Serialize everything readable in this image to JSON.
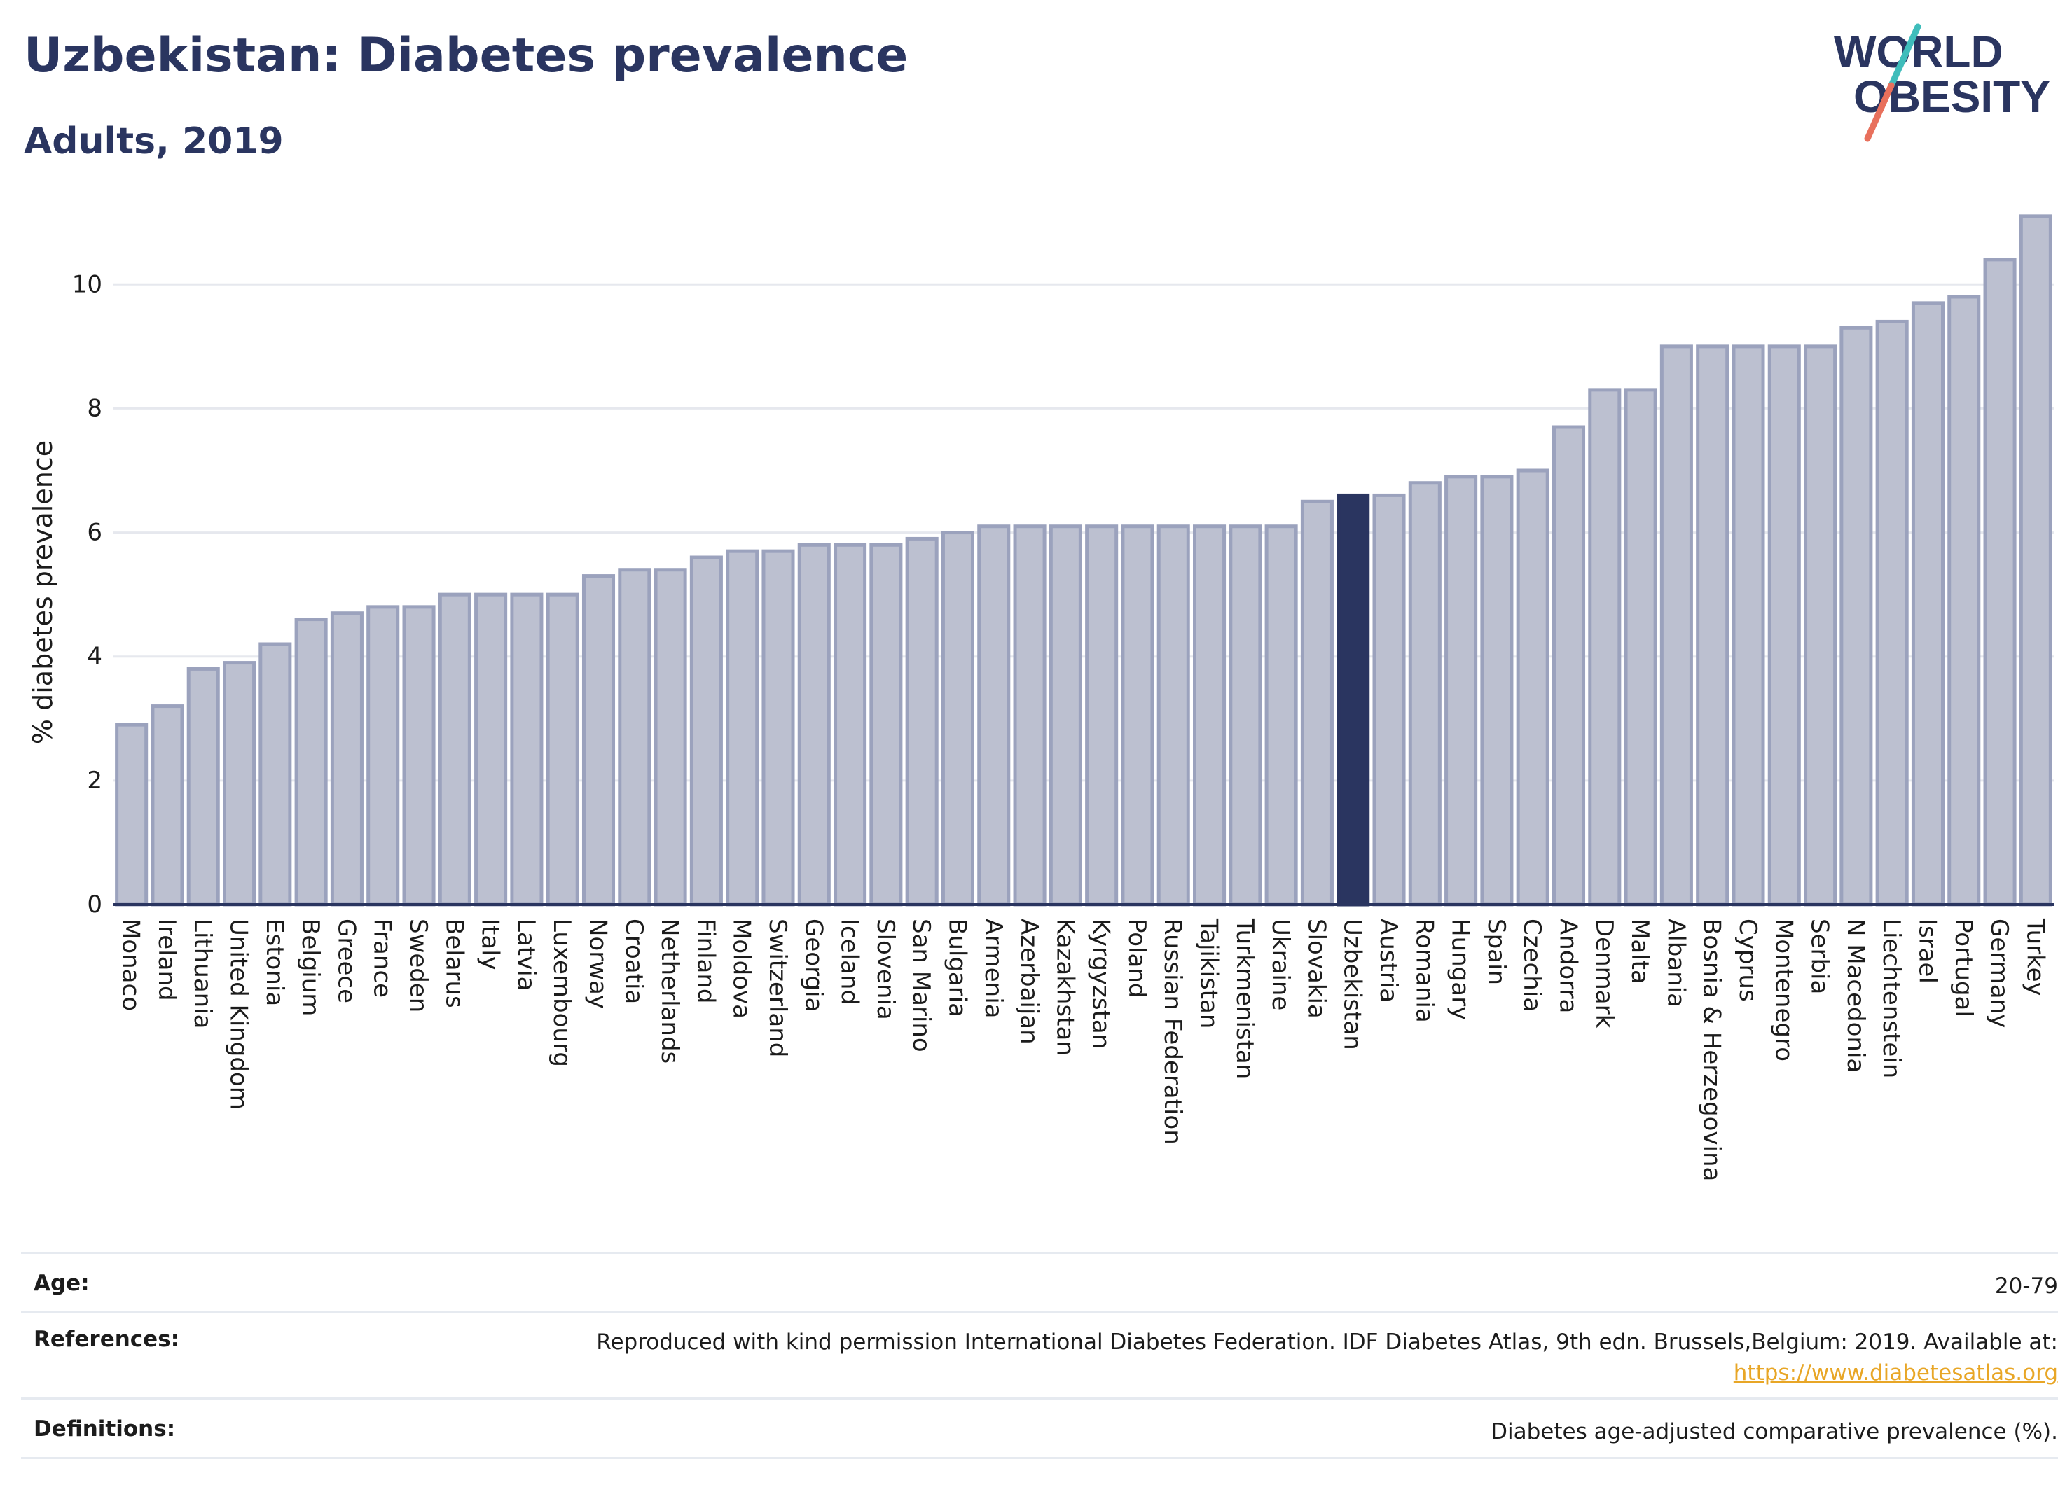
{
  "header": {
    "title": "Uzbekistan: Diabetes prevalence",
    "subtitle": "Adults, 2019"
  },
  "logo": {
    "line1": "WORLD",
    "line2": "OBESITY",
    "colors": {
      "text": "#2a3560",
      "teal": "#3fbdbb",
      "coral": "#e8705c"
    }
  },
  "colors": {
    "bar_fill": "#bcc0d0",
    "bar_stroke": "#9ba2bd",
    "highlight_fill": "#2a3560",
    "axis": "#2a3560",
    "grid": "#e6e8ee"
  },
  "chart_data": {
    "type": "bar",
    "title": "Uzbekistan: Diabetes prevalence",
    "subtitle": "Adults, 2019",
    "xlabel": "",
    "ylabel": "% diabetes prevalence",
    "ylim": [
      0,
      11.2
    ],
    "yticks": [
      0,
      2,
      4,
      6,
      8,
      10
    ],
    "highlight": "Uzbekistan",
    "grid": true,
    "categories": [
      "Monaco",
      "Ireland",
      "Lithuania",
      "United Kingdom",
      "Estonia",
      "Belgium",
      "Greece",
      "France",
      "Sweden",
      "Belarus",
      "Italy",
      "Latvia",
      "Luxembourg",
      "Norway",
      "Croatia",
      "Netherlands",
      "Finland",
      "Moldova",
      "Switzerland",
      "Georgia",
      "Iceland",
      "Slovenia",
      "San Marino",
      "Bulgaria",
      "Armenia",
      "Azerbaijan",
      "Kazakhstan",
      "Kyrgyzstan",
      "Poland",
      "Russian Federation",
      "Tajikistan",
      "Turkmenistan",
      "Ukraine",
      "Slovakia",
      "Uzbekistan",
      "Austria",
      "Romania",
      "Hungary",
      "Spain",
      "Czechia",
      "Andorra",
      "Denmark",
      "Malta",
      "Albania",
      "Bosnia & Herzegovina",
      "Cyprus",
      "Montenegro",
      "Serbia",
      "N Macedonia",
      "Liechtenstein",
      "Israel",
      "Portugal",
      "Germany",
      "Turkey"
    ],
    "values": [
      2.9,
      3.2,
      3.8,
      3.9,
      4.2,
      4.6,
      4.7,
      4.8,
      4.8,
      5.0,
      5.0,
      5.0,
      5.0,
      5.3,
      5.4,
      5.4,
      5.6,
      5.7,
      5.7,
      5.8,
      5.8,
      5.8,
      5.9,
      6.0,
      6.1,
      6.1,
      6.1,
      6.1,
      6.1,
      6.1,
      6.1,
      6.1,
      6.1,
      6.5,
      6.6,
      6.6,
      6.8,
      6.9,
      6.9,
      7.0,
      7.7,
      8.3,
      8.3,
      9.0,
      9.0,
      9.0,
      9.0,
      9.0,
      9.3,
      9.4,
      9.7,
      9.8,
      10.4,
      11.1
    ]
  },
  "info": {
    "age_label": "Age:",
    "age_value": "20-79",
    "references_label": "References:",
    "references_text": "Reproduced with kind permission International Diabetes Federation. IDF Diabetes Atlas, 9th edn. Brussels,Belgium: 2019. Available at:",
    "references_link": "https://www.diabetesatlas.org",
    "definitions_label": "Definitions:",
    "definitions_value": "Diabetes age-adjusted comparative prevalence (%)."
  }
}
